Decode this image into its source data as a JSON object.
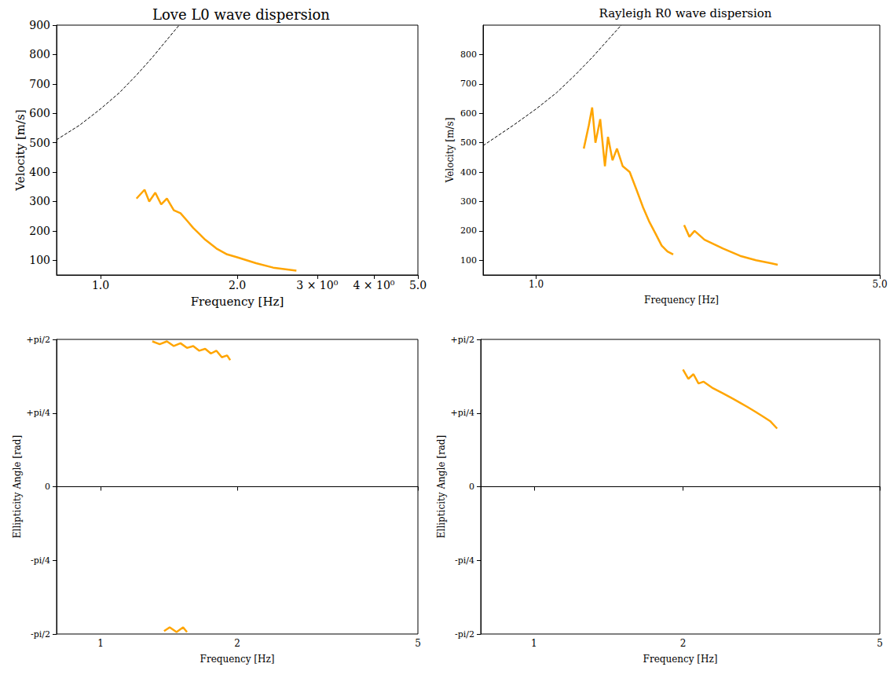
{
  "chart_data": [
    {
      "type": "line",
      "title": "Love L0 wave dispersion",
      "x_label": "Frequency [Hz]",
      "y_label": "Velocity [m/s]",
      "log": "x",
      "grid": false,
      "xlim": [
        0.8,
        5.0
      ],
      "xticks": [
        {
          "value": 1,
          "label": "1.0"
        },
        {
          "value": 2,
          "label": "2.0"
        },
        {
          "value": 3,
          "label": "3 × 10⁰"
        },
        {
          "value": 4,
          "label": "4 × 10⁰"
        },
        {
          "value": 5,
          "label": "5.0"
        }
      ],
      "ylim": [
        50,
        900
      ],
      "yticks": [
        100,
        200,
        300,
        400,
        500,
        600,
        700,
        800,
        900
      ],
      "series": [
        {
          "color": "#ffa500",
          "line_style": "solid",
          "x": [
            1.2,
            1.25,
            1.28,
            1.32,
            1.36,
            1.4,
            1.45,
            1.5,
            1.55,
            1.6,
            1.65,
            1.7,
            1.8,
            1.9,
            2.0,
            2.2,
            2.4,
            2.7
          ],
          "values": [
            310,
            340,
            300,
            330,
            290,
            310,
            270,
            260,
            235,
            210,
            190,
            170,
            140,
            120,
            110,
            90,
            75,
            65
          ]
        },
        {
          "color": "#000000",
          "line_style": "dashed",
          "x": [
            0.8,
            0.9,
            1.0,
            1.1,
            1.2,
            1.3,
            1.4,
            1.49
          ],
          "values": [
            510,
            560,
            615,
            670,
            730,
            790,
            850,
            900
          ]
        }
      ]
    },
    {
      "type": "line",
      "title": "Rayleigh R0 wave dispersion",
      "x_label": "Frequency [Hz]",
      "y_label": "Velocity [m/s]",
      "log": "x",
      "grid": false,
      "xlim": [
        0.78,
        5.0
      ],
      "xticks": [
        {
          "value": 1,
          "label": "1.0"
        },
        {
          "value": 5,
          "label": "5.0"
        }
      ],
      "ylim": [
        50,
        900
      ],
      "yticks": [
        100,
        200,
        300,
        400,
        500,
        600,
        700,
        800
      ],
      "series": [
        {
          "color": "#ffa500",
          "line_style": "solid",
          "x": [
            1.25,
            1.28,
            1.3,
            1.32,
            1.35,
            1.38,
            1.4,
            1.43,
            1.46,
            1.5,
            1.55,
            1.6,
            1.65,
            1.7,
            1.75,
            1.8,
            1.85,
            1.9,
            1.95,
            2.0,
            2.05,
            2.1,
            2.2,
            2.4,
            2.6,
            2.8,
            3.0,
            3.1
          ],
          "values": [
            480,
            560,
            620,
            500,
            580,
            420,
            520,
            440,
            480,
            420,
            400,
            340,
            280,
            230,
            190,
            150,
            130,
            120,
            null,
            220,
            180,
            200,
            170,
            140,
            115,
            100,
            90,
            85
          ]
        },
        {
          "color": "#000000",
          "line_style": "dashed",
          "x": [
            0.78,
            0.9,
            1.0,
            1.1,
            1.2,
            1.3,
            1.4,
            1.49
          ],
          "values": [
            490,
            560,
            615,
            670,
            730,
            790,
            850,
            900
          ]
        }
      ]
    },
    {
      "type": "line",
      "x_label": "Frequency [Hz]",
      "y_label": "Ellipticity Angle [rad]",
      "log": "x",
      "grid": false,
      "xlim": [
        0.8,
        5.0
      ],
      "xticks": [
        1,
        2,
        5
      ],
      "ylim": [
        -1.5708,
        1.5708
      ],
      "yticks": [
        {
          "value": 1.5708,
          "label": "+pi/2"
        },
        {
          "value": 0.7854,
          "label": "+pi/4"
        },
        0,
        {
          "value": -0.7854,
          "label": "-pi/4"
        },
        {
          "value": -1.5708,
          "label": "-pi/2"
        }
      ],
      "reference_line": 0,
      "series": [
        {
          "color": "#ffa500",
          "line_style": "solid",
          "x": [
            1.3,
            1.35,
            1.4,
            1.45,
            1.5,
            1.55,
            1.6,
            1.65,
            1.7,
            1.75,
            1.8,
            1.85,
            1.9,
            1.93
          ],
          "values": [
            1.55,
            1.52,
            1.55,
            1.5,
            1.53,
            1.48,
            1.5,
            1.45,
            1.47,
            1.42,
            1.45,
            1.38,
            1.4,
            1.35
          ]
        },
        {
          "color": "#ffa500",
          "line_style": "solid",
          "x": [
            1.38,
            1.42,
            1.47,
            1.52,
            1.55
          ],
          "values": [
            -1.54,
            -1.5,
            -1.55,
            -1.5,
            -1.55
          ]
        }
      ]
    },
    {
      "type": "line",
      "x_label": "Frequency [Hz]",
      "y_label": "Ellipticity Angle [rad]",
      "log": "x",
      "grid": false,
      "xlim": [
        0.78,
        5.0
      ],
      "xticks": [
        1,
        2,
        5
      ],
      "ylim": [
        -1.5708,
        1.5708
      ],
      "yticks": [
        {
          "value": 1.5708,
          "label": "+pi/2"
        },
        {
          "value": 0.7854,
          "label": "+pi/4"
        },
        0,
        {
          "value": -0.7854,
          "label": "-pi/4"
        },
        {
          "value": -1.5708,
          "label": "-pi/2"
        }
      ],
      "reference_line": 0,
      "series": [
        {
          "color": "#ffa500",
          "line_style": "solid",
          "x": [
            2.0,
            2.05,
            2.1,
            2.15,
            2.2,
            2.3,
            2.4,
            2.5,
            2.6,
            2.7,
            2.8,
            2.9,
            3.0,
            3.1
          ],
          "values": [
            1.25,
            1.15,
            1.2,
            1.1,
            1.12,
            1.05,
            1.0,
            0.95,
            0.9,
            0.85,
            0.8,
            0.75,
            0.7,
            0.62
          ]
        }
      ]
    }
  ]
}
